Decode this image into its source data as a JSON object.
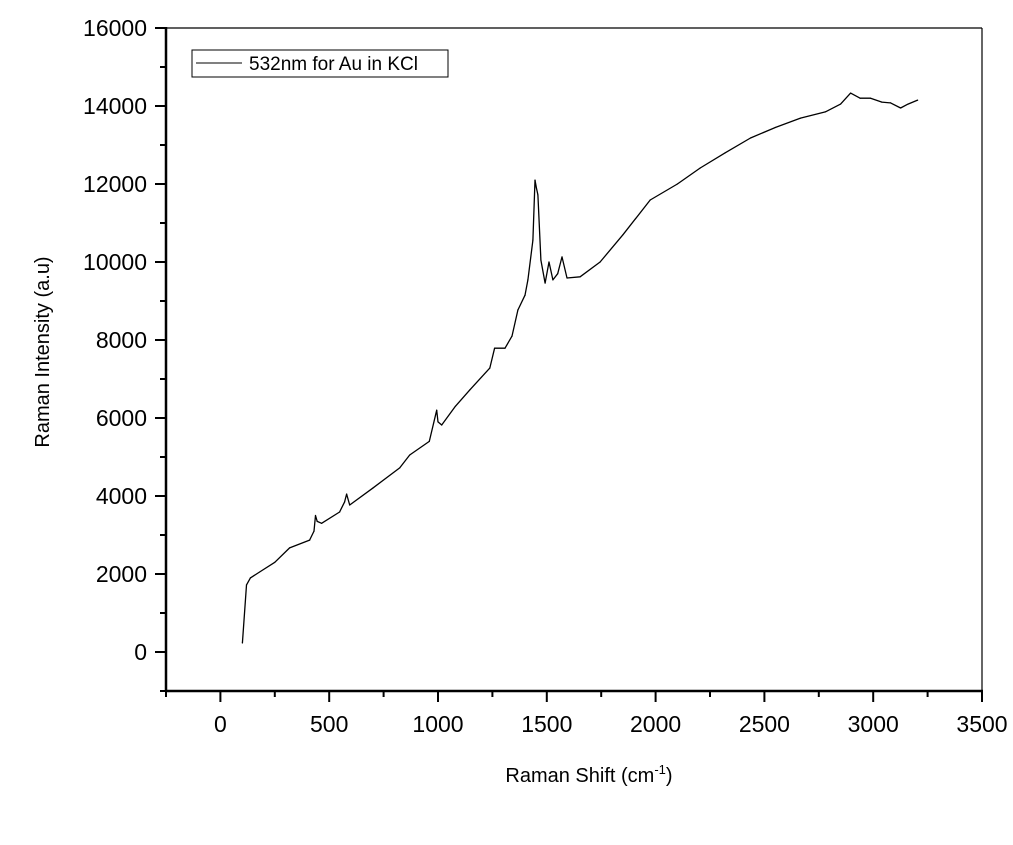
{
  "chart_data": {
    "type": "line",
    "title": "",
    "xlabel": "Raman Shift (cm",
    "xlabel_superscript": "-1",
    "xlabel_suffix": ")",
    "ylabel": "Raman Intensity (a.u)",
    "xlim": [
      -250,
      3500
    ],
    "ylim": [
      -1000,
      16000
    ],
    "xticks": [
      0,
      500,
      1000,
      1500,
      2000,
      2500,
      3000,
      3500
    ],
    "yticks": [
      0,
      2000,
      4000,
      6000,
      8000,
      10000,
      12000,
      14000,
      16000
    ],
    "grid": false,
    "legend_position": "top-left",
    "series": [
      {
        "name": "532nm for Au in KCl",
        "color": "#000000",
        "x": [
          101,
          120,
          138,
          180,
          250,
          318,
          410,
          430,
          437,
          445,
          465,
          548,
          571,
          580,
          594,
          700,
          824,
          870,
          960,
          994,
          1000,
          1017,
          1080,
          1146,
          1238,
          1260,
          1308,
          1340,
          1367,
          1400,
          1413,
          1436,
          1446,
          1452,
          1459,
          1473,
          1492,
          1510,
          1528,
          1550,
          1570,
          1593,
          1653,
          1745,
          1850,
          1975,
          2100,
          2205,
          2320,
          2436,
          2550,
          2666,
          2780,
          2850,
          2896,
          2940,
          2988,
          3040,
          3080,
          3126,
          3160,
          3204
        ],
        "y": [
          230,
          1720,
          1900,
          2050,
          2300,
          2670,
          2870,
          3100,
          3500,
          3350,
          3300,
          3590,
          3850,
          4050,
          3770,
          4200,
          4720,
          5050,
          5400,
          6200,
          5900,
          5820,
          6300,
          6720,
          7280,
          7790,
          7790,
          8100,
          8770,
          9150,
          9540,
          10560,
          12100,
          11900,
          11720,
          10050,
          9460,
          10000,
          9540,
          9700,
          10130,
          9590,
          9620,
          10000,
          10700,
          11590,
          12000,
          12410,
          12800,
          13180,
          13450,
          13690,
          13850,
          14050,
          14330,
          14200,
          14200,
          14100,
          14080,
          13950,
          14050,
          14150
        ]
      }
    ]
  }
}
